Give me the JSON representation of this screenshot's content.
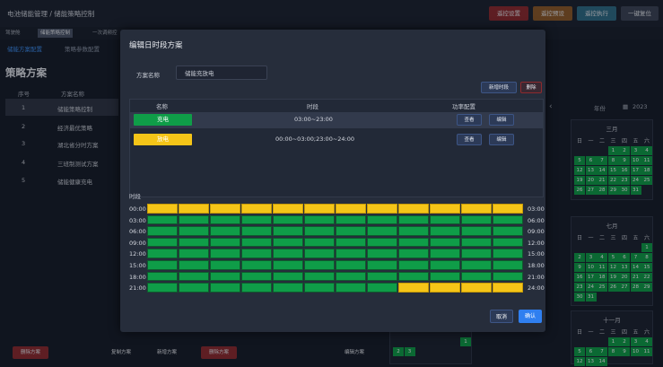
{
  "topbar": {
    "breadcrumb": "电池储能管理 / 储能策略控制",
    "buttons": [
      "遥控设置",
      "遥控预设",
      "遥控执行",
      "一键复位"
    ]
  },
  "tabs": [
    "驾驶舱",
    "储能策略控制",
    "一次调频控"
  ],
  "subtabs": [
    "储能方案配置",
    "策略参数配置"
  ],
  "page_title": "策略方案",
  "list": {
    "headers": [
      "序号",
      "方案名称"
    ],
    "rows": [
      {
        "no": "1",
        "name": "储能策略控制"
      },
      {
        "no": "2",
        "name": "经济最优策略"
      },
      {
        "no": "3",
        "name": "湖北省分时方案"
      },
      {
        "no": "4",
        "name": "三班制测试方案"
      },
      {
        "no": "5",
        "name": "储能健康充电"
      }
    ]
  },
  "bottom_buttons": [
    "删除方案",
    "复制方案",
    "新增方案",
    "删除方案",
    "编辑方案"
  ],
  "dialog": {
    "title": "编辑日时段方案",
    "plan_label": "方案名称",
    "plan_name": "储能充放电",
    "add_period": "新增时段",
    "delete": "删除",
    "table_headers": [
      "名称",
      "时段",
      "功率配置"
    ],
    "rows": [
      {
        "name": "充电",
        "period": "03:00~23:00",
        "color": "#0f9d48",
        "view": "查看",
        "edit": "编辑"
      },
      {
        "name": "放电",
        "period": "00:00~03:00;23:00~24:00",
        "color": "#f5c518",
        "view": "查看",
        "edit": "编辑"
      }
    ],
    "section_label": "时段",
    "grid_left": [
      "00:00",
      "03:00",
      "06:00",
      "09:00",
      "12:00",
      "15:00",
      "18:00",
      "21:00"
    ],
    "grid_right": [
      "03:00",
      "06:00",
      "09:00",
      "12:00",
      "15:00",
      "18:00",
      "21:00",
      "24:00"
    ],
    "grid": [
      [
        "y",
        "y",
        "y",
        "y",
        "y",
        "y",
        "y",
        "y",
        "y",
        "y",
        "y",
        "y"
      ],
      [
        "g",
        "g",
        "g",
        "g",
        "g",
        "g",
        "g",
        "g",
        "g",
        "g",
        "g",
        "g"
      ],
      [
        "g",
        "g",
        "g",
        "g",
        "g",
        "g",
        "g",
        "g",
        "g",
        "g",
        "g",
        "g"
      ],
      [
        "g",
        "g",
        "g",
        "g",
        "g",
        "g",
        "g",
        "g",
        "g",
        "g",
        "g",
        "g"
      ],
      [
        "g",
        "g",
        "g",
        "g",
        "g",
        "g",
        "g",
        "g",
        "g",
        "g",
        "g",
        "g"
      ],
      [
        "g",
        "g",
        "g",
        "g",
        "g",
        "g",
        "g",
        "g",
        "g",
        "g",
        "g",
        "g"
      ],
      [
        "g",
        "g",
        "g",
        "g",
        "g",
        "g",
        "g",
        "g",
        "g",
        "g",
        "g",
        "g"
      ],
      [
        "g",
        "g",
        "g",
        "g",
        "g",
        "g",
        "g",
        "g",
        "y",
        "y",
        "y",
        "y"
      ]
    ],
    "cancel": "取消",
    "confirm": "确认"
  },
  "calendar": {
    "year_label": "年份",
    "year": "2023",
    "weekdays": [
      "日",
      "一",
      "二",
      "三",
      "四",
      "五",
      "六"
    ],
    "months": [
      "三月",
      "七月",
      "十一月"
    ]
  }
}
